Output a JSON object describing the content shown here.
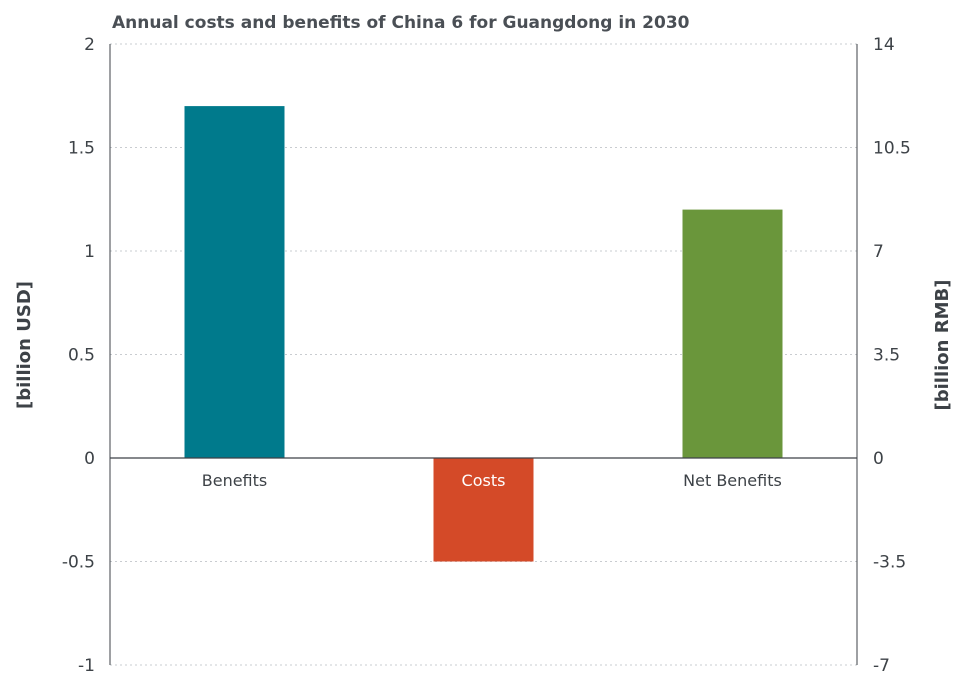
{
  "chart_data": {
    "type": "bar",
    "title": "Annual costs and benefits of China 6 for Guangdong in 2030",
    "categories": [
      "Benefits",
      "Costs",
      "Net Benefits"
    ],
    "values": [
      1.7,
      -0.5,
      1.2
    ],
    "colors": [
      "#007a8c",
      "#d44a28",
      "#6a963b"
    ],
    "ylabel": "[billion USD]",
    "y2label": "[billion RMB]",
    "ylim": [
      -1,
      2
    ],
    "yticks": [
      "2",
      "1.5",
      "1",
      "0.5",
      "0",
      "-0.5",
      "-1"
    ],
    "yticks_values": [
      2,
      1.5,
      1,
      0.5,
      0,
      -0.5,
      -1
    ],
    "y2lim": [
      -7,
      14
    ],
    "y2ticks": [
      "14",
      "10.5",
      "7",
      "3.5",
      "0",
      "-3.5",
      "-7"
    ],
    "grid": true
  }
}
